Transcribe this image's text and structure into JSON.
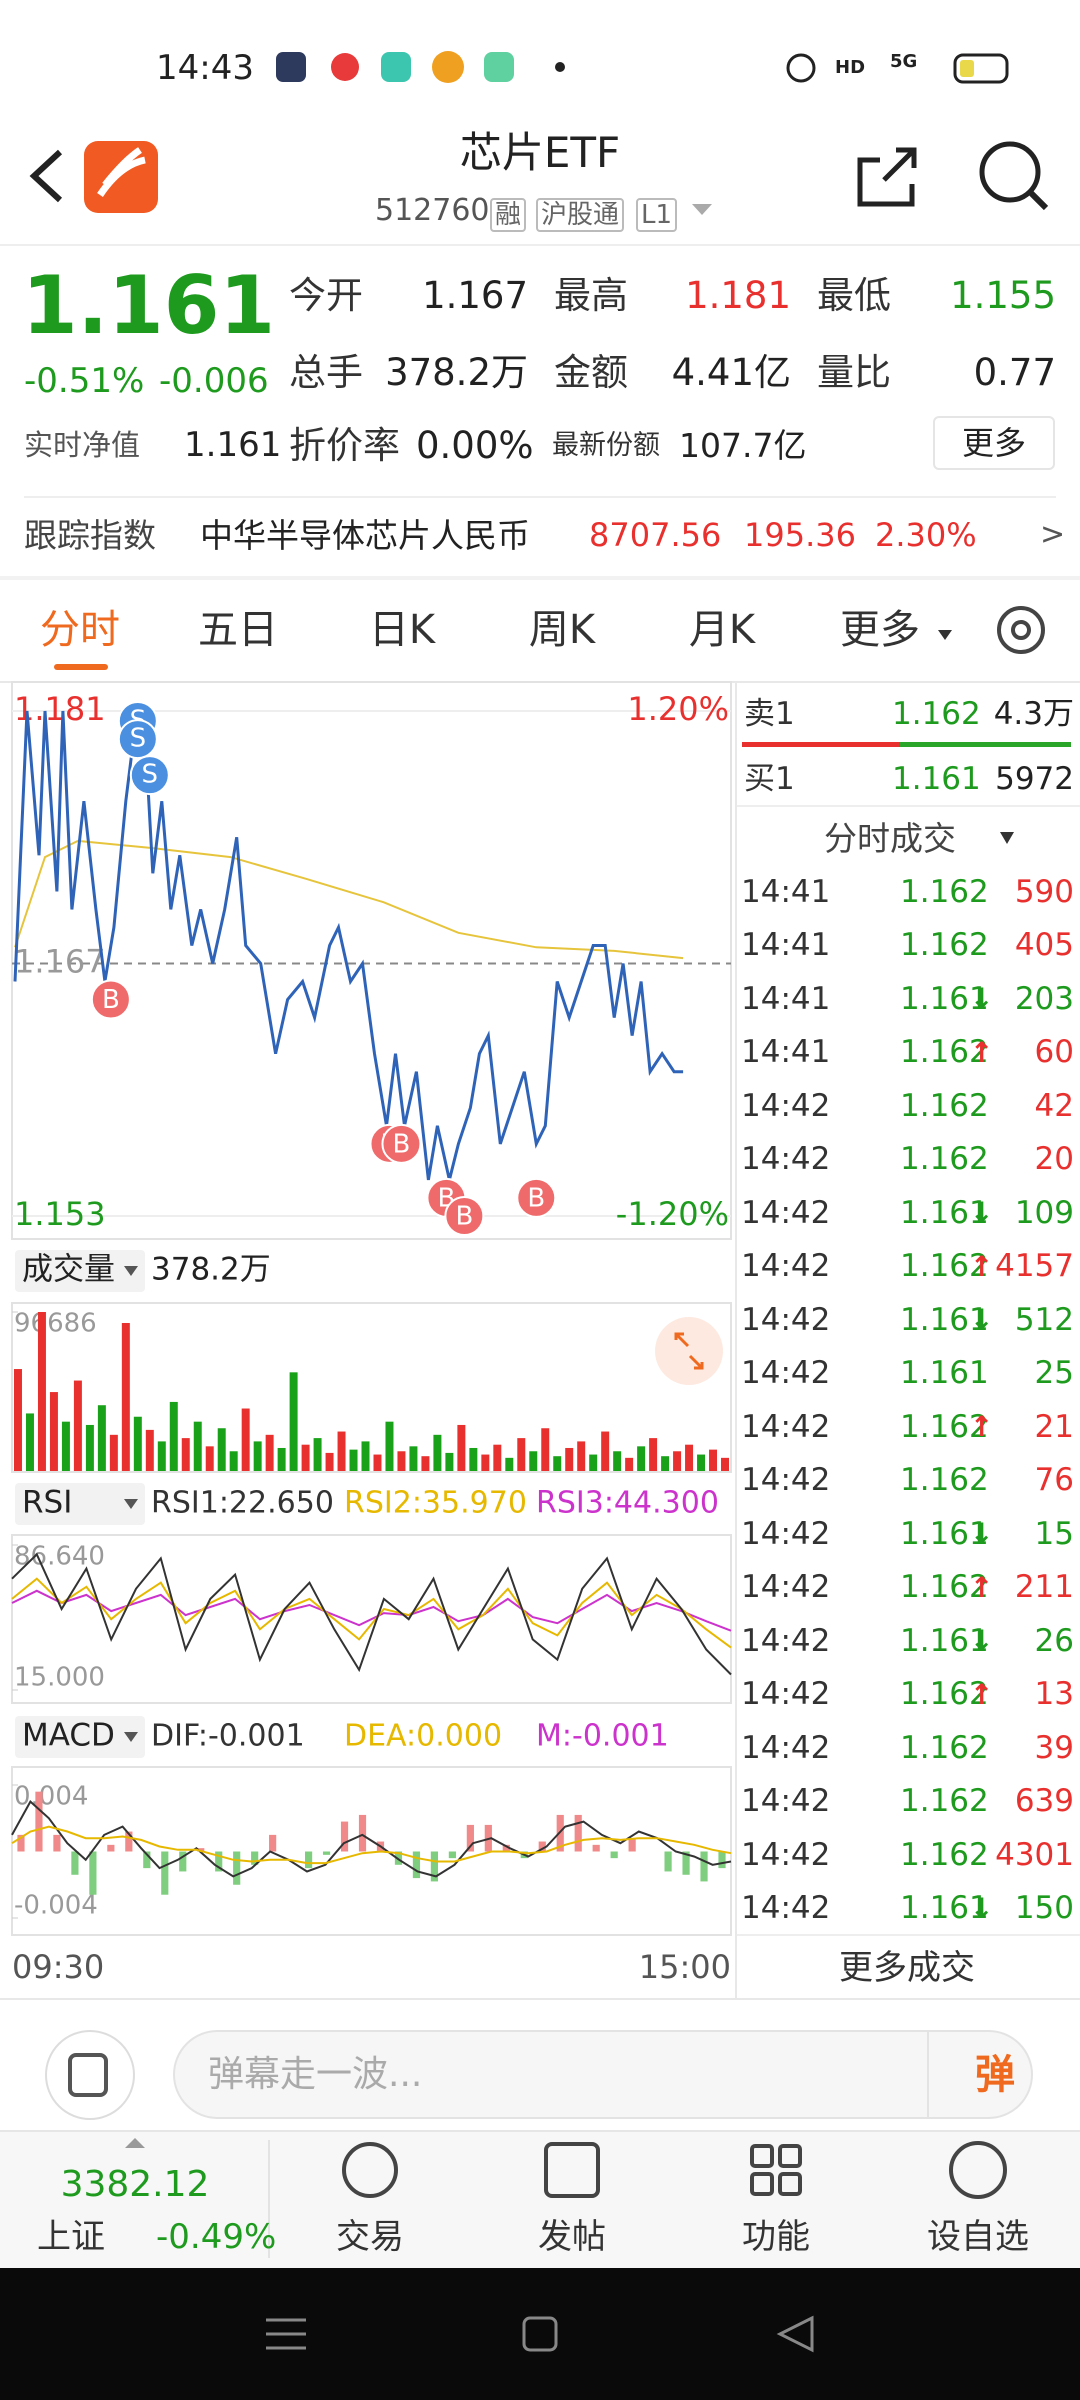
{
  "status": {
    "time": "14:43",
    "hd": "HD",
    "network": "5G"
  },
  "header": {
    "title": "芯片ETF",
    "code": "512760",
    "tags": [
      "融",
      "沪股通",
      "L1"
    ]
  },
  "quote": {
    "price": "1.161",
    "change_pct": "-0.51%",
    "change": "-0.006",
    "fields": [
      {
        "label": "今开",
        "value": "1.167"
      },
      {
        "label": "最高",
        "value": "1.181",
        "color": "#e8312f"
      },
      {
        "label": "最低",
        "value": "1.155",
        "color": "#1e9a1e"
      },
      {
        "label": "总手",
        "value": "378.2万"
      },
      {
        "label": "金额",
        "value": "4.41亿"
      },
      {
        "label": "量比",
        "value": "0.77"
      }
    ],
    "nav_label": "实时净值",
    "nav_value": "1.161",
    "premium_label": "折价率",
    "premium_value": "0.00%",
    "shares_label": "最新份额",
    "shares_value": "107.7亿",
    "more": "更多"
  },
  "track": {
    "label": "跟踪指数",
    "name": "中华半导体芯片人民币",
    "value": "8707.56",
    "change": "195.36",
    "pct": "2.30%",
    "arrow": ">"
  },
  "tabs": [
    "分时",
    "五日",
    "日K",
    "周K",
    "月K",
    "更多"
  ],
  "chart_data": [
    {
      "type": "line",
      "xlim": [
        0,
        240
      ],
      "xticks": [
        {
          "value": 0,
          "label": "09:30"
        },
        {
          "value": 240,
          "label": "15:00"
        }
      ],
      "ylim": [
        1.153,
        1.181
      ],
      "yticks": [
        1.181,
        1.167,
        1.153
      ],
      "y2lim": [
        -1.2,
        1.2
      ],
      "y2ticks": [
        {
          "value": 1.2,
          "label": "1.20%"
        },
        {
          "value": -1.2,
          "label": "-1.20%"
        }
      ],
      "series": [
        {
          "color": "#2f63b8",
          "x": [
            1,
            5,
            9,
            11,
            15,
            17,
            20,
            24,
            28,
            31,
            34,
            38,
            41,
            44,
            47,
            50,
            53,
            56,
            60,
            63,
            67,
            71,
            75,
            78,
            83,
            88,
            92,
            97,
            101,
            106,
            109,
            113,
            117,
            121,
            125,
            128,
            131,
            135,
            139,
            142,
            146,
            149,
            153,
            156,
            159,
            163,
            167,
            171,
            175,
            178,
            182,
            186,
            190,
            194,
            198,
            201,
            204,
            207,
            210,
            213,
            217,
            221,
            224
          ],
          "values": [
            1.166,
            1.181,
            1.173,
            1.181,
            1.171,
            1.181,
            1.17,
            1.176,
            1.17,
            1.166,
            1.169,
            1.176,
            1.18,
            1.181,
            1.172,
            1.176,
            1.17,
            1.173,
            1.168,
            1.17,
            1.167,
            1.17,
            1.174,
            1.168,
            1.167,
            1.162,
            1.165,
            1.166,
            1.164,
            1.168,
            1.169,
            1.166,
            1.167,
            1.162,
            1.158,
            1.162,
            1.158,
            1.161,
            1.155,
            1.158,
            1.155,
            1.157,
            1.159,
            1.162,
            1.163,
            1.157,
            1.159,
            1.161,
            1.157,
            1.158,
            1.166,
            1.164,
            1.166,
            1.168,
            1.168,
            1.164,
            1.167,
            1.163,
            1.166,
            1.161,
            1.162,
            1.161,
            1.161
          ]
        },
        {
          "color": "#e6c43c",
          "x": [
            1,
            11,
            22,
            47,
            73,
            98,
            124,
            149,
            175,
            201,
            224
          ],
          "values": [
            1.1679,
            1.1729,
            1.1738,
            1.1734,
            1.1729,
            1.1717,
            1.1704,
            1.1687,
            1.1679,
            1.1677,
            1.1673
          ]
        }
      ],
      "markers": [
        {
          "label": "S",
          "x": 42,
          "y": 1.18,
          "color": "#4a8fe0"
        },
        {
          "label": "S",
          "x": 42,
          "y": 1.179,
          "color": "#4a8fe0"
        },
        {
          "label": "S",
          "x": 46,
          "y": 1.177,
          "color": "#4a8fe0"
        },
        {
          "label": "B",
          "x": 33,
          "y": 1.166,
          "color": "#ef6b6b"
        },
        {
          "label": "B",
          "x": 126,
          "y": 1.158,
          "color": "#ef6b6b"
        },
        {
          "label": "B",
          "x": 130,
          "y": 1.158,
          "color": "#ef6b6b"
        },
        {
          "label": "B",
          "x": 145,
          "y": 1.155,
          "color": "#ef6b6b"
        },
        {
          "label": "B",
          "x": 151,
          "y": 1.154,
          "color": "#ef6b6b"
        },
        {
          "label": "B",
          "x": 175,
          "y": 1.155,
          "color": "#ef6b6b"
        }
      ]
    },
    {
      "type": "bar",
      "title": "成交量",
      "total": "378.2万",
      "ylim": [
        0,
        96686
      ],
      "yticks": [
        96686
      ],
      "values": [
        62000,
        35000,
        96686,
        48000,
        30000,
        55000,
        28000,
        40000,
        22000,
        90000,
        33000,
        25000,
        18000,
        42000,
        20000,
        30000,
        15000,
        26000,
        12000,
        38000,
        18000,
        22000,
        14000,
        60000,
        16000,
        20000,
        11000,
        24000,
        13000,
        18000,
        10000,
        30000,
        12000,
        15000,
        9000,
        22000,
        11000,
        28000,
        14000,
        10000,
        16000,
        8000,
        20000,
        12000,
        26000,
        9000,
        14000,
        18000,
        10000,
        24000,
        12000,
        8000,
        15000,
        20000,
        9000,
        12000,
        16000,
        10000,
        13000,
        8000
      ],
      "colors": [
        "#e8312f",
        "#1aa11a",
        "#e8312f",
        "#e8312f",
        "#1aa11a",
        "#e8312f",
        "#1aa11a",
        "#1aa11a",
        "#e8312f",
        "#e8312f",
        "#1aa11a",
        "#e8312f",
        "#1aa11a",
        "#1aa11a",
        "#e8312f",
        "#1aa11a",
        "#e8312f",
        "#1aa11a",
        "#1aa11a",
        "#e8312f",
        "#1aa11a",
        "#e8312f",
        "#1aa11a",
        "#1aa11a",
        "#e8312f",
        "#1aa11a",
        "#e8312f",
        "#e8312f",
        "#1aa11a",
        "#1aa11a",
        "#e8312f",
        "#1aa11a",
        "#e8312f",
        "#1aa11a",
        "#e8312f",
        "#1aa11a",
        "#1aa11a",
        "#e8312f",
        "#1aa11a",
        "#e8312f",
        "#e8312f",
        "#1aa11a",
        "#e8312f",
        "#1aa11a",
        "#e8312f",
        "#1aa11a",
        "#e8312f",
        "#e8312f",
        "#1aa11a",
        "#e8312f",
        "#1aa11a",
        "#e8312f",
        "#1aa11a",
        "#e8312f",
        "#1aa11a",
        "#e8312f",
        "#e8312f",
        "#1aa11a",
        "#e8312f",
        "#e8312f"
      ]
    },
    {
      "type": "line",
      "indicator": "RSI",
      "ylim": [
        15,
        86.64
      ],
      "yticks": [
        {
          "value": 86.64,
          "label": "86.640"
        },
        {
          "value": 15,
          "label": "15.000"
        }
      ],
      "series": [
        {
          "name": "RSI1:22.650",
          "color": "#333333",
          "values": [
            70,
            82,
            55,
            75,
            40,
            65,
            80,
            35,
            60,
            72,
            30,
            55,
            68,
            45,
            25,
            60,
            50,
            70,
            35,
            55,
            75,
            40,
            30,
            65,
            80,
            45,
            70,
            55,
            35,
            22.65
          ]
        },
        {
          "name": "RSI2:35.970",
          "color": "#e6b800",
          "values": [
            60,
            70,
            58,
            66,
            50,
            60,
            68,
            48,
            58,
            64,
            45,
            55,
            60,
            50,
            40,
            55,
            52,
            60,
            45,
            52,
            65,
            48,
            42,
            58,
            68,
            52,
            62,
            55,
            45,
            35.97
          ]
        },
        {
          "name": "RSI3:44.300",
          "color": "#cc33cc",
          "values": [
            58,
            64,
            58,
            62,
            54,
            58,
            62,
            52,
            56,
            60,
            50,
            54,
            57,
            52,
            47,
            53,
            52,
            56,
            49,
            52,
            60,
            51,
            48,
            55,
            62,
            54,
            58,
            54,
            49,
            44.3
          ]
        }
      ]
    },
    {
      "type": "macd",
      "indicator": "MACD",
      "ylim": [
        -0.004,
        0.004
      ],
      "yticks": [
        0.004,
        -0.004
      ],
      "series": [
        {
          "name": "DIF:-0.001",
          "color": "#333333",
          "values": [
            0.001,
            0.003,
            0.002,
            0.0005,
            -0.0005,
            0.001,
            0.0015,
            0.0002,
            -0.001,
            -0.0005,
            0.0002,
            -0.0008,
            -0.0015,
            -0.001,
            0,
            -0.0005,
            -0.0012,
            -0.0008,
            0.0005,
            0.001,
            0.0003,
            -0.0005,
            -0.0012,
            -0.0015,
            -0.0008,
            0.0005,
            0.0008,
            0.0002,
            -0.0003,
            0.0003,
            0.0015,
            0.0018,
            0.001,
            0.0005,
            0.0012,
            0.0008,
            0,
            -0.0003,
            -0.0008,
            -0.0006
          ]
        },
        {
          "name": "DEA:0.000",
          "color": "#e6b800",
          "values": [
            0.0005,
            0.0012,
            0.0015,
            0.0012,
            0.0008,
            0.0008,
            0.0009,
            0.0007,
            0.0003,
            0.0001,
            0.0001,
            -0.0002,
            -0.0005,
            -0.0006,
            -0.0005,
            -0.0005,
            -0.0007,
            -0.0007,
            -0.0004,
            -0.0001,
            0,
            -0.0001,
            -0.0004,
            -0.0006,
            -0.0006,
            -0.0003,
            0,
            0,
            -0.0001,
            0,
            0.0004,
            0.0007,
            0.0008,
            0.0007,
            0.0008,
            0.0008,
            0.0006,
            0.0004,
            0.0001,
            -0.0001
          ]
        },
        {
          "name": "M:-0.001",
          "color": "#cc33cc",
          "type": "bar",
          "colors": {
            "up": "#f08a8a",
            "down": "#7fce7f"
          },
          "values": [
            0.001,
            0.0036,
            0.001,
            -0.0014,
            -0.0026,
            0.0004,
            0.0012,
            -0.001,
            -0.0026,
            -0.0012,
            0.0002,
            -0.0012,
            -0.002,
            -0.0008,
            0.001,
            0,
            -0.001,
            -0.0002,
            0.0018,
            0.0022,
            0.0006,
            -0.0008,
            -0.0016,
            -0.0018,
            -0.0004,
            0.0016,
            0.0016,
            0.0004,
            -0.0004,
            0.0006,
            0.0022,
            0.0022,
            0.0004,
            -0.0004,
            0.0008,
            0,
            -0.0012,
            -0.0014,
            -0.0018,
            -0.001
          ]
        }
      ]
    }
  ],
  "order_book": {
    "sell_label": "卖1",
    "sell_price": "1.162",
    "sell_volume": "4.3万",
    "buy_label": "买1",
    "buy_price": "1.161",
    "buy_volume": "5972"
  },
  "trades": {
    "title": "分时成交",
    "more": "更多成交",
    "rows": [
      {
        "time": "14:41",
        "price": "1.162",
        "volume": "590",
        "color": "#e8312f"
      },
      {
        "time": "14:41",
        "price": "1.162",
        "volume": "405",
        "color": "#e8312f"
      },
      {
        "time": "14:41",
        "price": "1.161",
        "arrow": "↓",
        "volume": "203",
        "color": "#1e9a1e"
      },
      {
        "time": "14:41",
        "price": "1.162",
        "arrow": "↑",
        "volume": "60",
        "color": "#e8312f"
      },
      {
        "time": "14:42",
        "price": "1.162",
        "volume": "42",
        "color": "#e8312f"
      },
      {
        "time": "14:42",
        "price": "1.162",
        "volume": "20",
        "color": "#e8312f"
      },
      {
        "time": "14:42",
        "price": "1.161",
        "arrow": "↓",
        "volume": "109",
        "color": "#1e9a1e"
      },
      {
        "time": "14:42",
        "price": "1.162",
        "arrow": "↑",
        "volume": "4157",
        "color": "#e8312f"
      },
      {
        "time": "14:42",
        "price": "1.161",
        "arrow": "↓",
        "volume": "512",
        "color": "#1e9a1e"
      },
      {
        "time": "14:42",
        "price": "1.161",
        "volume": "25",
        "color": "#1e9a1e"
      },
      {
        "time": "14:42",
        "price": "1.162",
        "arrow": "↑",
        "volume": "21",
        "color": "#e8312f"
      },
      {
        "time": "14:42",
        "price": "1.162",
        "volume": "76",
        "color": "#e8312f"
      },
      {
        "time": "14:42",
        "price": "1.161",
        "arrow": "↓",
        "volume": "15",
        "color": "#1e9a1e"
      },
      {
        "time": "14:42",
        "price": "1.162",
        "arrow": "↑",
        "volume": "211",
        "color": "#e8312f"
      },
      {
        "time": "14:42",
        "price": "1.161",
        "arrow": "↓",
        "volume": "26",
        "color": "#1e9a1e"
      },
      {
        "time": "14:42",
        "price": "1.162",
        "arrow": "↑",
        "volume": "13",
        "color": "#e8312f"
      },
      {
        "time": "14:42",
        "price": "1.162",
        "volume": "39",
        "color": "#e8312f"
      },
      {
        "time": "14:42",
        "price": "1.162",
        "volume": "639",
        "color": "#e8312f"
      },
      {
        "time": "14:42",
        "price": "1.162",
        "volume": "4301",
        "color": "#e8312f"
      },
      {
        "time": "14:42",
        "price": "1.161",
        "arrow": "↓",
        "volume": "150",
        "color": "#1e9a1e"
      }
    ]
  },
  "comment": {
    "placeholder": "弹幕走一波...",
    "send": "弹"
  },
  "index_ticker": {
    "value": "3382.12",
    "name": "上证",
    "pct": "-0.49%"
  },
  "nav": [
    "交易",
    "发帖",
    "功能",
    "设自选"
  ]
}
